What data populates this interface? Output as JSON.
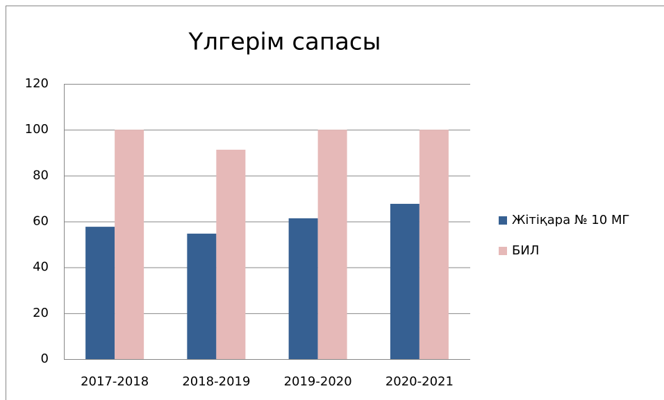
{
  "chart_data": {
    "type": "bar",
    "title": "Үлгерім сапасы",
    "categories": [
      "2017-2018",
      "2018-2019",
      "2019-2020",
      "2020-2021"
    ],
    "series": [
      {
        "name": "Жітіқара № 10 МГ",
        "color": "#366092",
        "values": [
          57.7,
          54.7,
          61.4,
          67.7
        ]
      },
      {
        "name": "БИЛ",
        "color": "#e6b9b8",
        "values": [
          100,
          91.3,
          100,
          100
        ]
      }
    ],
    "ylim": [
      0,
      120
    ],
    "yticks": [
      0,
      20,
      40,
      60,
      80,
      100,
      120
    ],
    "grid": true,
    "legend": "right"
  }
}
